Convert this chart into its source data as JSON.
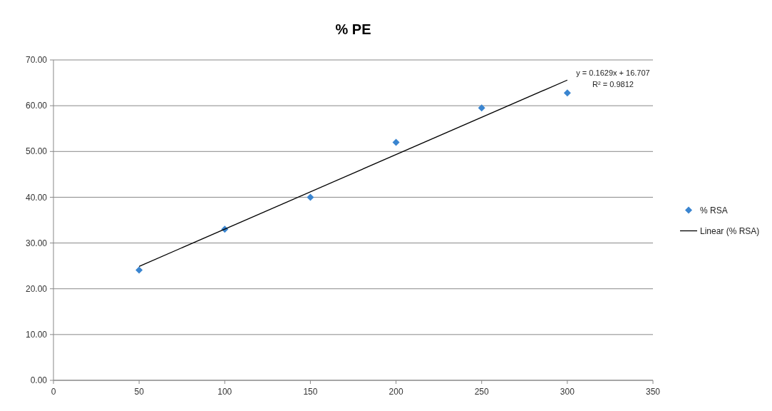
{
  "chart_data": {
    "type": "scatter",
    "title": "% PE",
    "xlim": [
      0,
      350
    ],
    "xticks": [
      0,
      50,
      100,
      150,
      200,
      250,
      300,
      350
    ],
    "ylim": [
      0,
      70
    ],
    "yticks": [
      {
        "value": 0,
        "label": "0.00"
      },
      {
        "value": 10,
        "label": "10.00"
      },
      {
        "value": 20,
        "label": "20.00"
      },
      {
        "value": 30,
        "label": "30.00"
      },
      {
        "value": 40,
        "label": "40.00"
      },
      {
        "value": 50,
        "label": "50.00"
      },
      {
        "value": 60,
        "label": "60.00"
      },
      {
        "value": 70,
        "label": "70.00"
      }
    ],
    "grid": "y",
    "legend": "right",
    "marker": "diamond",
    "series": [
      {
        "name": "% RSA",
        "type": "scatter",
        "color": "#3a85d0",
        "x": [
          50,
          100,
          150,
          200,
          250,
          300
        ],
        "values": [
          24.1,
          33.0,
          40.0,
          52.0,
          59.5,
          62.8
        ]
      },
      {
        "name": "Linear (% RSA)",
        "type": "line",
        "color": "#000000",
        "marker": "none",
        "x": [
          50,
          300
        ],
        "values": [
          24.9,
          65.6
        ]
      }
    ],
    "annotations": [
      "y = 0.1629x + 16.707",
      "R² = 0.9812"
    ]
  }
}
